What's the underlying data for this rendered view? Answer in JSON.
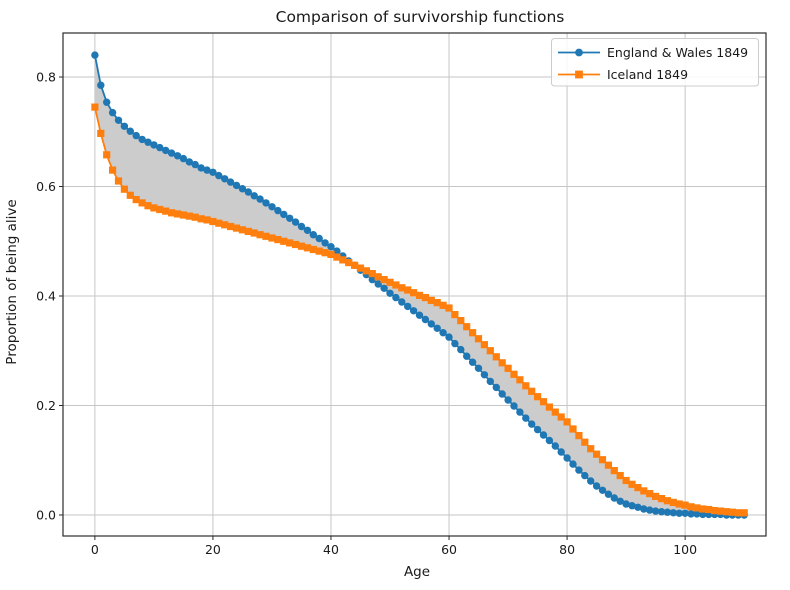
{
  "chart_data": {
    "type": "line",
    "title": "Comparison of survivorship functions",
    "xlabel": "Age",
    "ylabel": "Proportion of being alive",
    "grid": true,
    "legend_position": "upper right",
    "xlim": [
      -5.4,
      113.7
    ],
    "ylim": [
      -0.0384,
      0.8804
    ],
    "xticks": [
      0,
      20,
      40,
      60,
      80,
      100
    ],
    "xtick_labels": [
      "0",
      "20",
      "40",
      "60",
      "80",
      "100"
    ],
    "yticks": [
      0.0,
      0.2,
      0.4,
      0.6,
      0.8
    ],
    "ytick_labels": [
      "0.0",
      "0.2",
      "0.4",
      "0.6",
      "0.8"
    ],
    "ages": [
      0,
      1,
      2,
      3,
      4,
      5,
      6,
      7,
      8,
      9,
      10,
      11,
      12,
      13,
      14,
      15,
      16,
      17,
      18,
      19,
      20,
      21,
      22,
      23,
      24,
      25,
      26,
      27,
      28,
      29,
      30,
      31,
      32,
      33,
      34,
      35,
      36,
      37,
      38,
      39,
      40,
      41,
      42,
      43,
      44,
      45,
      46,
      47,
      48,
      49,
      50,
      51,
      52,
      53,
      54,
      55,
      56,
      57,
      58,
      59,
      60,
      61,
      62,
      63,
      64,
      65,
      66,
      67,
      68,
      69,
      70,
      71,
      72,
      73,
      74,
      75,
      76,
      77,
      78,
      79,
      80,
      81,
      82,
      83,
      84,
      85,
      86,
      87,
      88,
      89,
      90,
      91,
      92,
      93,
      94,
      95,
      96,
      97,
      98,
      99,
      100,
      101,
      102,
      103,
      104,
      105,
      106,
      107,
      108,
      109,
      110
    ],
    "series": [
      {
        "name": "England & Wales 1849",
        "color": "#1f77b4",
        "marker": "circle",
        "values": [
          0.84,
          0.785,
          0.754,
          0.735,
          0.721,
          0.71,
          0.701,
          0.693,
          0.686,
          0.681,
          0.676,
          0.671,
          0.666,
          0.661,
          0.656,
          0.651,
          0.645,
          0.64,
          0.634,
          0.63,
          0.626,
          0.62,
          0.614,
          0.608,
          0.602,
          0.596,
          0.59,
          0.583,
          0.577,
          0.57,
          0.563,
          0.556,
          0.549,
          0.542,
          0.535,
          0.527,
          0.52,
          0.512,
          0.505,
          0.497,
          0.49,
          0.482,
          0.473,
          0.464,
          0.456,
          0.447,
          0.439,
          0.43,
          0.422,
          0.414,
          0.405,
          0.397,
          0.389,
          0.381,
          0.373,
          0.365,
          0.357,
          0.349,
          0.341,
          0.333,
          0.325,
          0.313,
          0.302,
          0.29,
          0.279,
          0.268,
          0.256,
          0.244,
          0.233,
          0.221,
          0.21,
          0.199,
          0.188,
          0.177,
          0.166,
          0.156,
          0.146,
          0.136,
          0.126,
          0.115,
          0.104,
          0.093,
          0.082,
          0.072,
          0.062,
          0.053,
          0.045,
          0.038,
          0.031,
          0.025,
          0.02,
          0.017,
          0.014,
          0.011,
          0.009,
          0.007,
          0.006,
          0.005,
          0.004,
          0.003,
          0.003,
          0.002,
          0.002,
          0.001,
          0.001,
          0.001,
          0.001,
          0.0,
          0.0,
          0.0,
          0.0
        ]
      },
      {
        "name": "Iceland 1849",
        "color": "#ff7f0e",
        "marker": "square",
        "values": [
          0.745,
          0.697,
          0.658,
          0.63,
          0.61,
          0.595,
          0.584,
          0.576,
          0.57,
          0.565,
          0.561,
          0.558,
          0.555,
          0.552,
          0.55,
          0.548,
          0.546,
          0.544,
          0.541,
          0.539,
          0.536,
          0.533,
          0.53,
          0.527,
          0.524,
          0.521,
          0.518,
          0.515,
          0.512,
          0.509,
          0.506,
          0.503,
          0.5,
          0.497,
          0.494,
          0.491,
          0.488,
          0.485,
          0.482,
          0.479,
          0.476,
          0.471,
          0.466,
          0.461,
          0.456,
          0.451,
          0.446,
          0.441,
          0.435,
          0.43,
          0.425,
          0.42,
          0.415,
          0.411,
          0.406,
          0.401,
          0.397,
          0.392,
          0.388,
          0.383,
          0.378,
          0.366,
          0.355,
          0.344,
          0.333,
          0.322,
          0.311,
          0.3,
          0.289,
          0.278,
          0.268,
          0.257,
          0.247,
          0.236,
          0.226,
          0.216,
          0.207,
          0.197,
          0.188,
          0.179,
          0.17,
          0.157,
          0.145,
          0.133,
          0.121,
          0.111,
          0.101,
          0.091,
          0.081,
          0.072,
          0.063,
          0.056,
          0.05,
          0.044,
          0.039,
          0.034,
          0.03,
          0.026,
          0.023,
          0.02,
          0.018,
          0.015,
          0.013,
          0.011,
          0.01,
          0.008,
          0.007,
          0.006,
          0.005,
          0.004,
          0.004
        ]
      }
    ],
    "fill_between": {
      "between": [
        "England & Wales 1849",
        "Iceland 1849"
      ],
      "color": "#cccccc"
    },
    "colors": {
      "grid": "#c6c6c6",
      "spine": "#2b2b2b",
      "text": "#1a1a1a",
      "legend_border": "#cccccc"
    }
  }
}
